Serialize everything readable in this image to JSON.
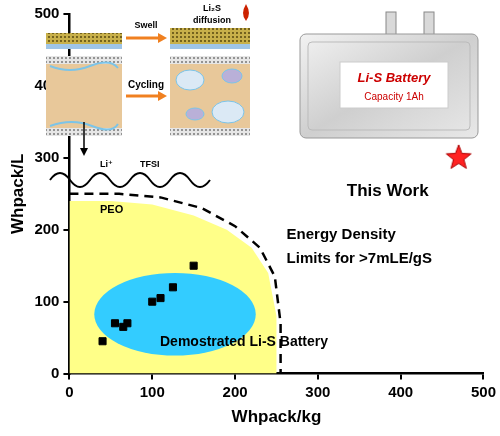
{
  "chart_data": {
    "type": "scatter",
    "x_label": "Whpack/kg",
    "y_label": "Whpack/L",
    "xlim": [
      0,
      500
    ],
    "ylim": [
      0,
      500
    ],
    "xticks": [
      0,
      100,
      200,
      300,
      400,
      500
    ],
    "yticks": [
      0,
      100,
      200,
      300,
      400,
      500
    ],
    "grid": false,
    "series": [
      {
        "type": "area",
        "color": "#ffff88",
        "x": [
          0,
          50,
          100,
          150,
          190,
          220,
          240,
          250,
          250
        ],
        "values": [
          240,
          240,
          235,
          220,
          200,
          175,
          140,
          80,
          0
        ]
      },
      {
        "type": "ellipse",
        "name": "Demostrated Li-S Battery",
        "color": "#33ccff",
        "x": [
          30,
          225
        ],
        "values": [
          25,
          140
        ]
      },
      {
        "type": "line",
        "name": "Energy Density Limits for >7mLE/gS",
        "color": "#000000",
        "line_style": "dashed",
        "x": [
          0,
          60,
          110,
          160,
          200,
          230,
          248,
          255,
          255
        ],
        "values": [
          250,
          250,
          245,
          230,
          205,
          175,
          135,
          70,
          0
        ]
      },
      {
        "type": "scatter",
        "color": "#000000",
        "marker": "square",
        "x": [
          40,
          55,
          65,
          70,
          100,
          110,
          125,
          150
        ],
        "values": [
          45,
          70,
          65,
          70,
          100,
          105,
          120,
          150
        ]
      },
      {
        "type": "scatter",
        "name": "This Work",
        "color": "#ff2222",
        "marker": "star",
        "x": [
          470
        ],
        "values": [
          300
        ]
      }
    ]
  },
  "insets": {
    "swell": "Swell",
    "diffusion": "Li₂S diffusion",
    "cycling": "Cycling",
    "cation": "Li⁺",
    "anion": "TFSI",
    "polymer": "PEO",
    "battery": "Li-S Battery",
    "capacity": "Capacity 1Ah"
  }
}
